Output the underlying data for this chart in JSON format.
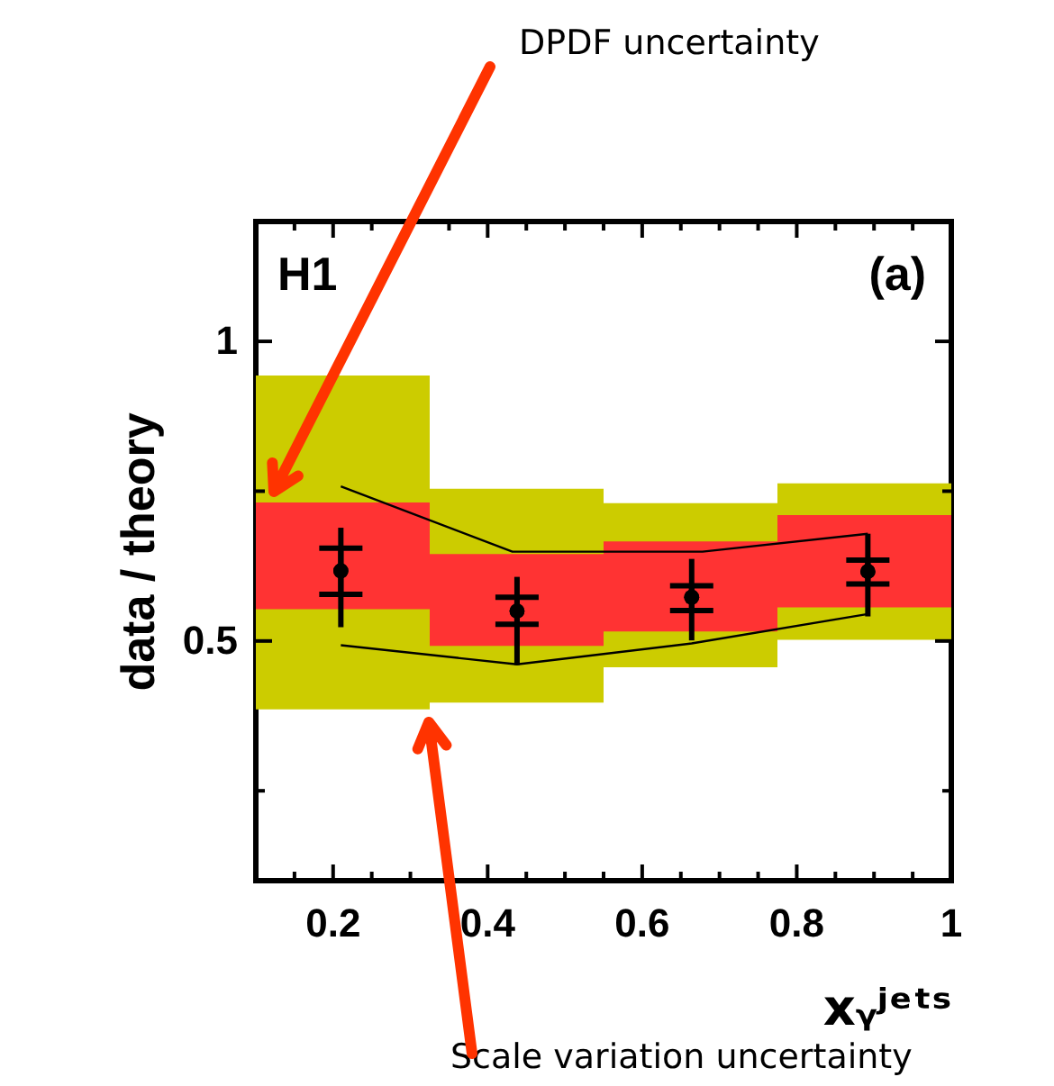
{
  "chart_data": {
    "type": "scatter",
    "ylabel": "data / theory",
    "xlabel": "xᵧʲᵉᵗˢ",
    "xlim": [
      0.1,
      1
    ],
    "ylim": [
      0.1,
      1.2
    ],
    "xticks": [
      {
        "value": 0.15,
        "label": null
      },
      {
        "value": 0.2,
        "label": "0.2"
      },
      {
        "value": 0.25,
        "label": null
      },
      {
        "value": 0.3,
        "label": null
      },
      {
        "value": 0.35,
        "label": null
      },
      {
        "value": 0.4,
        "label": "0.4"
      },
      {
        "value": 0.45,
        "label": null
      },
      {
        "value": 0.5,
        "label": null
      },
      {
        "value": 0.55,
        "label": null
      },
      {
        "value": 0.6,
        "label": "0.6"
      },
      {
        "value": 0.65,
        "label": null
      },
      {
        "value": 0.7,
        "label": null
      },
      {
        "value": 0.75,
        "label": null
      },
      {
        "value": 0.8,
        "label": "0.8"
      },
      {
        "value": 0.85,
        "label": null
      },
      {
        "value": 0.9,
        "label": null
      },
      {
        "value": 0.95,
        "label": null
      },
      {
        "value": 1,
        "label": "1"
      }
    ],
    "yticks": [
      {
        "value": 0.25,
        "label": null
      },
      {
        "value": 0.5,
        "label": "0.5"
      },
      {
        "value": 0.75,
        "label": null
      },
      {
        "value": 1,
        "label": "1"
      }
    ],
    "grid": false,
    "annotations": [
      "H1",
      "(a)",
      "DPDF uncertainty",
      "Scale variation uncertainty"
    ],
    "series": [
      {
        "type": "bar",
        "color": "#cccc00",
        "x": [
          0.2125,
          0.4375,
          0.6625,
          0.8875
        ],
        "base": [
          0.386,
          0.397,
          0.456,
          0.502
        ],
        "values": [
          0.557,
          0.357,
          0.274,
          0.261
        ]
      },
      {
        "type": "bar",
        "color": "#ff3333",
        "x": [
          0.2125,
          0.4375,
          0.6625,
          0.8875
        ],
        "base": [
          0.553,
          0.492,
          0.516,
          0.556
        ],
        "values": [
          0.178,
          0.153,
          0.15,
          0.154
        ]
      },
      {
        "type": "line",
        "color": "#000000",
        "x": [
          0.21,
          0.432,
          0.678,
          0.892
        ],
        "values": [
          0.758,
          0.649,
          0.649,
          0.679
        ]
      },
      {
        "type": "line",
        "color": "#000000",
        "x": [
          0.21,
          0.438,
          0.664,
          0.892
        ],
        "values": [
          0.493,
          0.461,
          0.496,
          0.545
        ]
      },
      {
        "color": "#000000",
        "marker": "circle",
        "x": [
          0.21,
          0.438,
          0.664,
          0.892
        ],
        "values": [
          0.617,
          0.55,
          0.573,
          0.616
        ],
        "errors": [
          [
            0.523,
            0.689
          ],
          [
            0.46,
            0.607
          ],
          [
            0.501,
            0.637
          ],
          [
            0.541,
            0.679
          ]
        ]
      },
      {
        "color": "#000000",
        "marker": "circle",
        "x": [
          0.21,
          0.438,
          0.664,
          0.892
        ],
        "values": [
          0.617,
          0.55,
          0.573,
          0.616
        ],
        "errors": [
          [
            0.578,
            0.655
          ],
          [
            0.528,
            0.573
          ],
          [
            0.551,
            0.592
          ],
          [
            0.595,
            0.635
          ]
        ]
      }
    ]
  }
}
